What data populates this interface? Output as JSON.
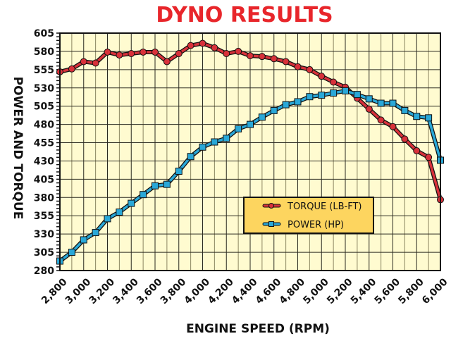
{
  "chart_data": {
    "type": "line",
    "title": "DYNO RESULTS",
    "xlabel": "ENGINE SPEED (RPM)",
    "ylabel": "POWER AND TORQUE",
    "xlim": [
      2800,
      6000
    ],
    "ylim": [
      280,
      605
    ],
    "x_ticks": [
      2800,
      3000,
      3200,
      3400,
      3600,
      3800,
      4000,
      4200,
      4400,
      4600,
      4800,
      5000,
      5200,
      5400,
      5600,
      5800,
      6000
    ],
    "x_tick_labels": [
      "2,800",
      "3,000",
      "3,200",
      "3,400",
      "3,600",
      "3,800",
      "4,000",
      "4,200",
      "4,400",
      "4,600",
      "4,800",
      "5,000",
      "5,200",
      "5,400",
      "5,600",
      "5,800",
      "6,000"
    ],
    "y_ticks": [
      280,
      305,
      330,
      355,
      380,
      405,
      430,
      455,
      480,
      505,
      530,
      555,
      580,
      605
    ],
    "y_tick_labels": [
      "280",
      "305",
      "330",
      "355",
      "380",
      "405",
      "430",
      "455",
      "480",
      "505",
      "530",
      "555",
      "580",
      "605"
    ],
    "grid": true,
    "legend_position": "center-right",
    "x": [
      2800,
      2900,
      3000,
      3100,
      3200,
      3300,
      3400,
      3500,
      3600,
      3700,
      3800,
      3900,
      4000,
      4100,
      4200,
      4300,
      4400,
      4500,
      4600,
      4700,
      4800,
      4900,
      5000,
      5100,
      5200,
      5300,
      5400,
      5500,
      5600,
      5700,
      5800,
      5900,
      6000
    ],
    "series": [
      {
        "name": "TORQUE (LB-FT)",
        "color": "#d8313a",
        "marker": "circle",
        "values": [
          552,
          556,
          566,
          564,
          579,
          575,
          577,
          579,
          579,
          566,
          577,
          588,
          591,
          585,
          577,
          580,
          574,
          573,
          570,
          566,
          559,
          555,
          546,
          538,
          531,
          516,
          501,
          486,
          477,
          460,
          444,
          435,
          377
        ]
      },
      {
        "name": "POWER (HP)",
        "color": "#29a8d8",
        "marker": "square",
        "values": [
          293,
          305,
          322,
          332,
          351,
          360,
          372,
          384,
          396,
          398,
          416,
          436,
          449,
          456,
          461,
          474,
          480,
          490,
          499,
          507,
          511,
          518,
          520,
          523,
          526,
          521,
          515,
          509,
          509,
          499,
          491,
          489,
          431
        ]
      }
    ],
    "colors": {
      "title": "#e8262b",
      "plot_background": "#fffbd0",
      "legend_background": "#fdd55f"
    }
  }
}
